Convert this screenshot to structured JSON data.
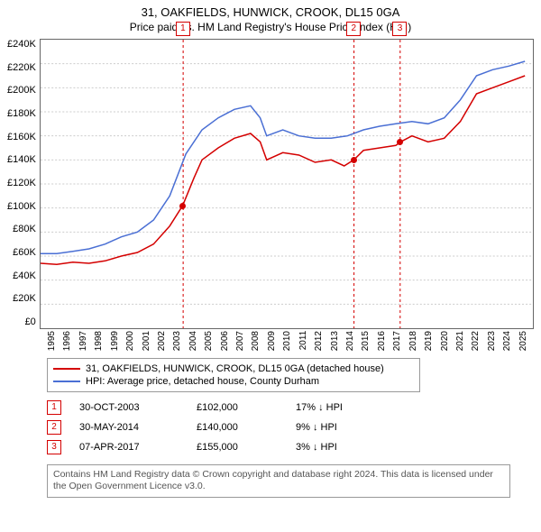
{
  "title": "31, OAKFIELDS, HUNWICK, CROOK, DL15 0GA",
  "subtitle": "Price paid vs. HM Land Registry's House Price Index (HPI)",
  "chart": {
    "type": "line",
    "background": "#ffffff",
    "grid_color": "#cccccc",
    "x_years": [
      "1995",
      "1996",
      "1997",
      "1998",
      "1999",
      "2000",
      "2001",
      "2002",
      "2003",
      "2004",
      "2005",
      "2006",
      "2007",
      "2008",
      "2009",
      "2010",
      "2011",
      "2012",
      "2013",
      "2014",
      "2015",
      "2016",
      "2017",
      "2018",
      "2019",
      "2020",
      "2021",
      "2022",
      "2023",
      "2024",
      "2025"
    ],
    "y_ticks": [
      "£240K",
      "£220K",
      "£200K",
      "£180K",
      "£160K",
      "£140K",
      "£120K",
      "£100K",
      "£80K",
      "£60K",
      "£40K",
      "£20K",
      "£0"
    ],
    "y_min": 0,
    "y_max": 240,
    "x_min": 1995,
    "x_max": 2025.5,
    "series": [
      {
        "name": "price_paid",
        "color": "#d40000",
        "width": 1.6,
        "points": [
          [
            1995,
            54
          ],
          [
            1996,
            53
          ],
          [
            1997,
            55
          ],
          [
            1998,
            54
          ],
          [
            1999,
            56
          ],
          [
            2000,
            60
          ],
          [
            2001,
            63
          ],
          [
            2002,
            70
          ],
          [
            2003,
            85
          ],
          [
            2003.8,
            102
          ],
          [
            2004.5,
            125
          ],
          [
            2005,
            140
          ],
          [
            2006,
            150
          ],
          [
            2007,
            158
          ],
          [
            2008,
            162
          ],
          [
            2008.6,
            155
          ],
          [
            2009,
            140
          ],
          [
            2010,
            146
          ],
          [
            2011,
            144
          ],
          [
            2012,
            138
          ],
          [
            2013,
            140
          ],
          [
            2013.8,
            135
          ],
          [
            2014.4,
            140
          ],
          [
            2015,
            148
          ],
          [
            2016,
            150
          ],
          [
            2017,
            152
          ],
          [
            2017.3,
            155
          ],
          [
            2018,
            160
          ],
          [
            2019,
            155
          ],
          [
            2020,
            158
          ],
          [
            2021,
            172
          ],
          [
            2022,
            195
          ],
          [
            2023,
            200
          ],
          [
            2024,
            205
          ],
          [
            2025,
            210
          ]
        ]
      },
      {
        "name": "hpi",
        "color": "#4a6fd4",
        "width": 1.4,
        "points": [
          [
            1995,
            62
          ],
          [
            1996,
            62
          ],
          [
            1997,
            64
          ],
          [
            1998,
            66
          ],
          [
            1999,
            70
          ],
          [
            2000,
            76
          ],
          [
            2001,
            80
          ],
          [
            2002,
            90
          ],
          [
            2003,
            110
          ],
          [
            2004,
            145
          ],
          [
            2005,
            165
          ],
          [
            2006,
            175
          ],
          [
            2007,
            182
          ],
          [
            2008,
            185
          ],
          [
            2008.6,
            175
          ],
          [
            2009,
            160
          ],
          [
            2010,
            165
          ],
          [
            2011,
            160
          ],
          [
            2012,
            158
          ],
          [
            2013,
            158
          ],
          [
            2014,
            160
          ],
          [
            2015,
            165
          ],
          [
            2016,
            168
          ],
          [
            2017,
            170
          ],
          [
            2018,
            172
          ],
          [
            2019,
            170
          ],
          [
            2020,
            175
          ],
          [
            2021,
            190
          ],
          [
            2022,
            210
          ],
          [
            2023,
            215
          ],
          [
            2024,
            218
          ],
          [
            2025,
            222
          ]
        ]
      }
    ],
    "event_markers": [
      {
        "n": "1",
        "x": 2003.83,
        "color": "#d40000",
        "dot_y": 102
      },
      {
        "n": "2",
        "x": 2014.41,
        "color": "#d40000",
        "dot_y": 140
      },
      {
        "n": "3",
        "x": 2017.27,
        "color": "#d40000",
        "dot_y": 155
      }
    ]
  },
  "legend": [
    {
      "color": "#d40000",
      "label": "31, OAKFIELDS, HUNWICK, CROOK, DL15 0GA (detached house)"
    },
    {
      "color": "#4a6fd4",
      "label": "HPI: Average price, detached house, County Durham"
    }
  ],
  "events": [
    {
      "n": "1",
      "color": "#d40000",
      "date": "30-OCT-2003",
      "price": "£102,000",
      "diff": "17% ↓ HPI"
    },
    {
      "n": "2",
      "color": "#d40000",
      "date": "30-MAY-2014",
      "price": "£140,000",
      "diff": "9% ↓ HPI"
    },
    {
      "n": "3",
      "color": "#d40000",
      "date": "07-APR-2017",
      "price": "£155,000",
      "diff": "3% ↓ HPI"
    }
  ],
  "footer": "Contains HM Land Registry data © Crown copyright and database right 2024. This data is licensed under the Open Government Licence v3.0."
}
